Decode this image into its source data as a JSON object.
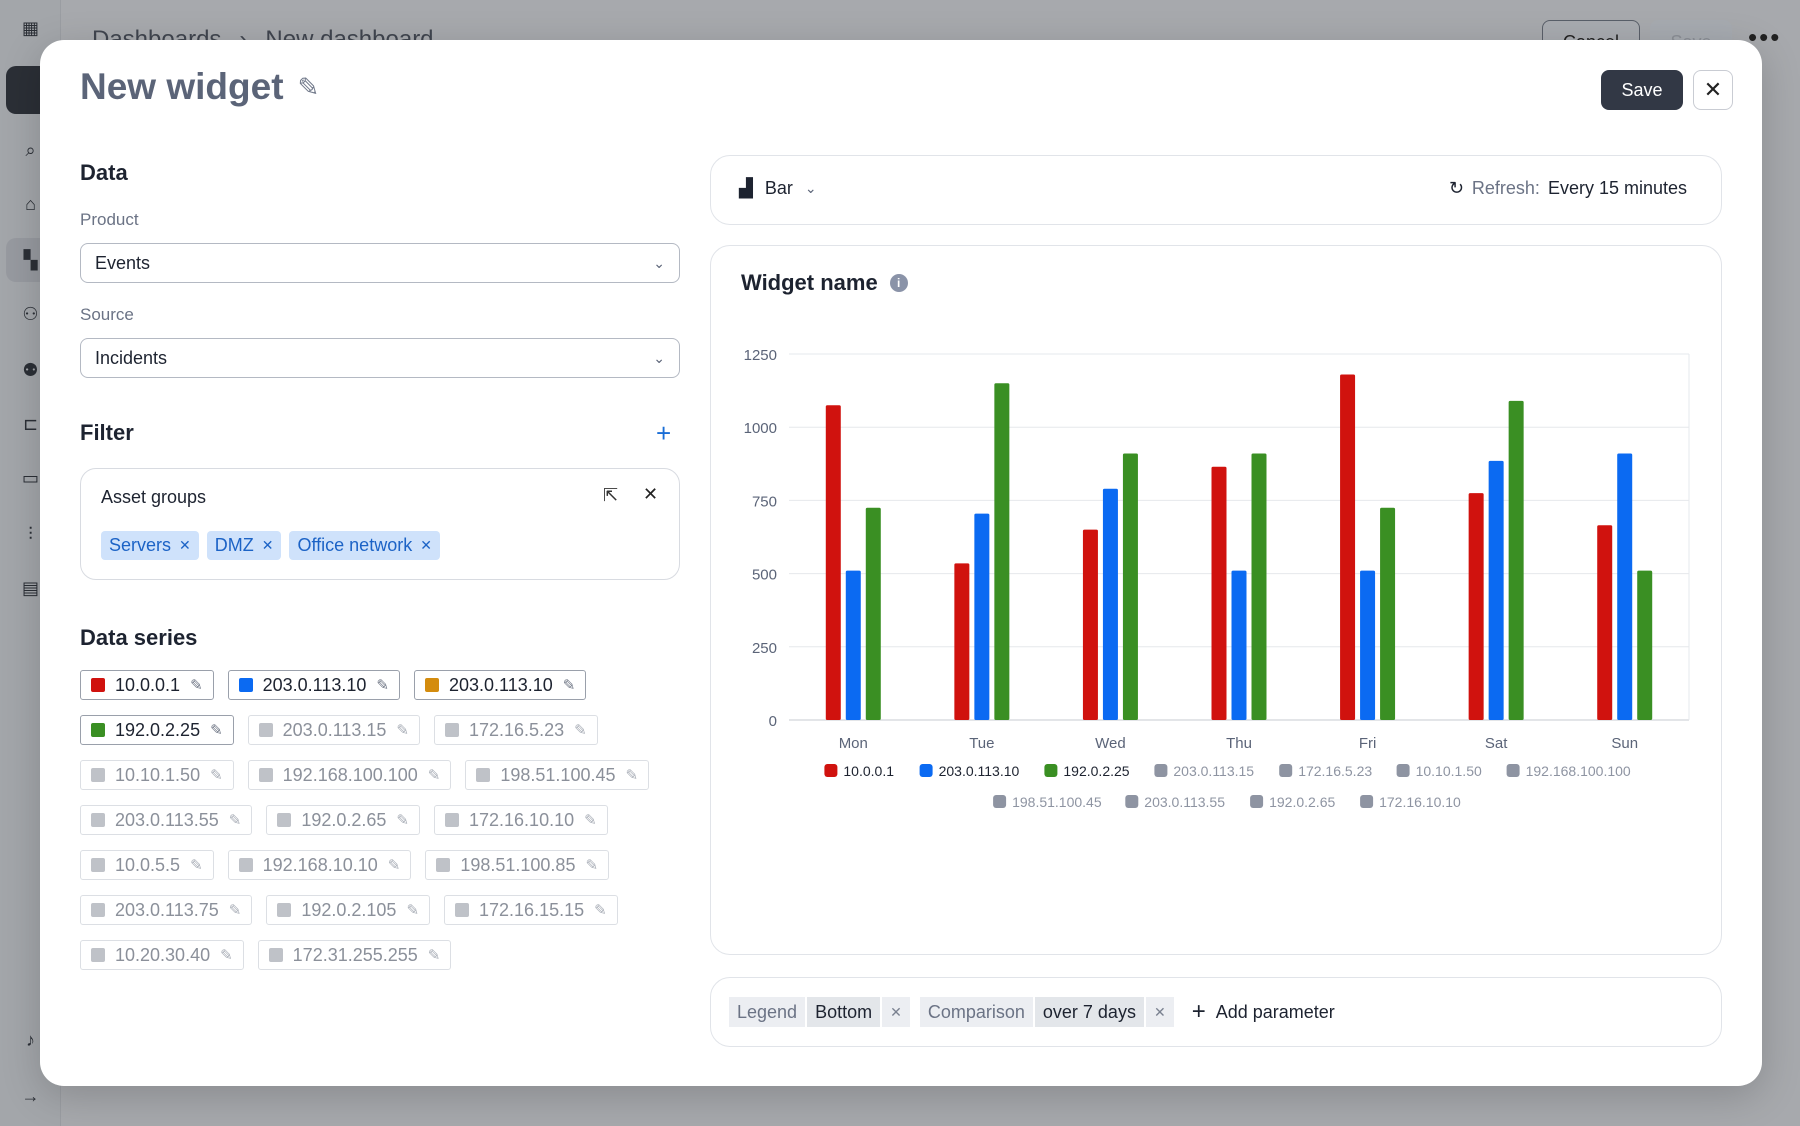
{
  "background": {
    "breadcrumb": [
      "Dashboards",
      "New dashboard"
    ],
    "cancel_label": "Cancel",
    "save_label": "Save"
  },
  "modal": {
    "title": "New widget",
    "save_label": "Save"
  },
  "data_section": {
    "heading": "Data",
    "product_label": "Product",
    "product_value": "Events",
    "source_label": "Source",
    "source_value": "Incidents"
  },
  "filter_section": {
    "heading": "Filter",
    "box_title": "Asset groups",
    "chips": [
      "Servers",
      "DMZ",
      "Office network"
    ]
  },
  "series_section": {
    "heading": "Data series",
    "tags": [
      {
        "label": "10.0.0.1",
        "color": "#d0120e",
        "active": true
      },
      {
        "label": "203.0.113.10",
        "color": "#0b6af2",
        "active": true
      },
      {
        "label": "203.0.113.10",
        "color": "#d48c0e",
        "active": true
      },
      {
        "label": "192.0.2.25",
        "color": "#3a8f23",
        "active": true
      },
      {
        "label": "203.0.113.15",
        "color": "#bfc2c8",
        "active": false
      },
      {
        "label": "172.16.5.23",
        "color": "#bfc2c8",
        "active": false
      },
      {
        "label": "10.10.1.50",
        "color": "#bfc2c8",
        "active": false
      },
      {
        "label": "192.168.100.100",
        "color": "#bfc2c8",
        "active": false
      },
      {
        "label": "198.51.100.45",
        "color": "#bfc2c8",
        "active": false
      },
      {
        "label": "203.0.113.55",
        "color": "#bfc2c8",
        "active": false
      },
      {
        "label": "192.0.2.65",
        "color": "#bfc2c8",
        "active": false
      },
      {
        "label": "172.16.10.10",
        "color": "#bfc2c8",
        "active": false
      },
      {
        "label": "10.0.5.5",
        "color": "#bfc2c8",
        "active": false
      },
      {
        "label": "192.168.10.10",
        "color": "#bfc2c8",
        "active": false
      },
      {
        "label": "198.51.100.85",
        "color": "#bfc2c8",
        "active": false
      },
      {
        "label": "203.0.113.75",
        "color": "#bfc2c8",
        "active": false
      },
      {
        "label": "192.0.2.105",
        "color": "#bfc2c8",
        "active": false
      },
      {
        "label": "172.16.15.15",
        "color": "#bfc2c8",
        "active": false
      },
      {
        "label": "10.20.30.40",
        "color": "#bfc2c8",
        "active": false
      },
      {
        "label": "172.31.255.255",
        "color": "#bfc2c8",
        "active": false
      }
    ]
  },
  "toolbar": {
    "chart_type": "Bar",
    "refresh_label": "Refresh:",
    "refresh_value": "Every 15 minutes"
  },
  "chart_title": "Widget name",
  "chart_data": {
    "type": "bar",
    "categories": [
      "Mon",
      "Tue",
      "Wed",
      "Thu",
      "Fri",
      "Sat",
      "Sun"
    ],
    "ylim": [
      0,
      1250
    ],
    "yticks": [
      0,
      250,
      500,
      750,
      1000,
      1250
    ],
    "grid": true,
    "legend_position": "bottom",
    "series": [
      {
        "name": "10.0.0.1",
        "color": "#d0120e",
        "values": [
          1075,
          535,
          650,
          865,
          1180,
          775,
          665
        ]
      },
      {
        "name": "203.0.113.10",
        "color": "#0b6af2",
        "values": [
          510,
          705,
          790,
          510,
          510,
          885,
          910
        ]
      },
      {
        "name": "192.0.2.25",
        "color": "#3a8f23",
        "values": [
          725,
          1150,
          910,
          910,
          725,
          1090,
          510
        ]
      }
    ],
    "legend": [
      {
        "name": "10.0.0.1",
        "color": "#d0120e",
        "active": true
      },
      {
        "name": "203.0.113.10",
        "color": "#0b6af2",
        "active": true
      },
      {
        "name": "192.0.2.25",
        "color": "#3a8f23",
        "active": true
      },
      {
        "name": "203.0.113.15",
        "color": "#8e94a2",
        "active": false
      },
      {
        "name": "172.16.5.23",
        "color": "#8e94a2",
        "active": false
      },
      {
        "name": "10.10.1.50",
        "color": "#8e94a2",
        "active": false
      },
      {
        "name": "192.168.100.100",
        "color": "#8e94a2",
        "active": false
      },
      {
        "name": "198.51.100.45",
        "color": "#8e94a2",
        "active": false
      },
      {
        "name": "203.0.113.55",
        "color": "#8e94a2",
        "active": false
      },
      {
        "name": "192.0.2.65",
        "color": "#8e94a2",
        "active": false
      },
      {
        "name": "172.16.10.10",
        "color": "#8e94a2",
        "active": false
      }
    ]
  },
  "params": {
    "legend_key": "Legend",
    "legend_value": "Bottom",
    "comparison_key": "Comparison",
    "comparison_value": "over 7 days",
    "add_label": "Add parameter"
  }
}
